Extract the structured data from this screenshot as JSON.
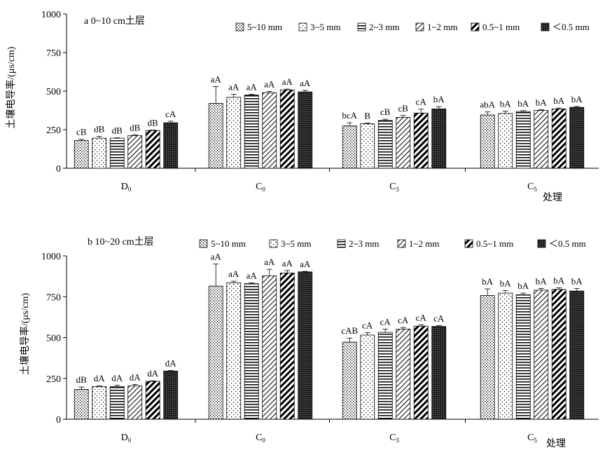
{
  "chart_data": [
    {
      "type": "bar",
      "title": "a 0~10 cm土层",
      "xlabel": "处理",
      "ylabel": "土壤电导率/(μs/cm)",
      "ylim": [
        0,
        1000
      ],
      "yticks": [
        "0",
        "250",
        "500",
        "750",
        "1000"
      ],
      "categories": [
        "D0",
        "C0",
        "C3",
        "C5"
      ],
      "category_labels": [
        {
          "base": "D",
          "sub": "0"
        },
        {
          "base": "C",
          "sub": "0"
        },
        {
          "base": "C",
          "sub": "3"
        },
        {
          "base": "C",
          "sub": "5"
        }
      ],
      "grid": false,
      "legend_position": "top",
      "series": [
        {
          "name": "5~10 mm",
          "values": [
            180,
            420,
            275,
            345
          ],
          "errors": [
            8,
            110,
            20,
            20
          ],
          "labels": [
            "cB",
            "aA",
            "bcA",
            "abA"
          ]
        },
        {
          "name": "3~5 mm",
          "values": [
            195,
            460,
            288,
            355
          ],
          "errors": [
            12,
            20,
            5,
            15
          ],
          "labels": [
            "dB",
            "aA",
            "B",
            "bA"
          ]
        },
        {
          "name": "2~3 mm",
          "values": [
            195,
            475,
            310,
            368
          ],
          "errors": [
            3,
            5,
            8,
            5
          ],
          "labels": [
            "dB",
            "aA",
            "cB",
            "bA"
          ]
        },
        {
          "name": "1~2 mm",
          "values": [
            212,
            490,
            330,
            375
          ],
          "errors": [
            5,
            8,
            12,
            5
          ],
          "labels": [
            "dB",
            "aA",
            "cB",
            "bA"
          ]
        },
        {
          "name": "0.5~1 mm",
          "values": [
            245,
            508,
            358,
            385
          ],
          "errors": [
            3,
            5,
            25,
            5
          ],
          "labels": [
            "dB",
            "aA",
            "cA",
            "bA"
          ]
        },
        {
          "name": "＜0.5 mm",
          "values": [
            295,
            495,
            385,
            395
          ],
          "errors": [
            10,
            10,
            15,
            5
          ],
          "labels": [
            "cA",
            "aA",
            "bA",
            "bA"
          ]
        }
      ]
    },
    {
      "type": "bar",
      "title": "b 10~20 cm土层",
      "xlabel": "处理",
      "ylabel": "土壤电导率/(μs/cm)",
      "ylim": [
        0,
        1000
      ],
      "yticks": [
        "0",
        "250",
        "500",
        "750",
        "1000"
      ],
      "categories": [
        "D0",
        "C0",
        "C3",
        "C5"
      ],
      "category_labels": [
        {
          "base": "D",
          "sub": "0"
        },
        {
          "base": "C",
          "sub": "0"
        },
        {
          "base": "C",
          "sub": "3"
        },
        {
          "base": "C",
          "sub": "5"
        }
      ],
      "grid": false,
      "legend_position": "top",
      "series": [
        {
          "name": "5~10 mm",
          "values": [
            182,
            815,
            472,
            758
          ],
          "errors": [
            15,
            135,
            25,
            40
          ],
          "labels": [
            "dB",
            "aA",
            "cAB",
            "bA"
          ]
        },
        {
          "name": "3~5 mm",
          "values": [
            200,
            835,
            515,
            772
          ],
          "errors": [
            5,
            10,
            15,
            15
          ],
          "labels": [
            "dA",
            "aA",
            "cA",
            "bA"
          ]
        },
        {
          "name": "2~3 mm",
          "values": [
            200,
            830,
            532,
            762
          ],
          "errors": [
            8,
            5,
            20,
            10
          ],
          "labels": [
            "dA",
            "aA",
            "cA",
            "bA"
          ]
        },
        {
          "name": "1~2 mm",
          "values": [
            205,
            878,
            552,
            790
          ],
          "errors": [
            8,
            40,
            10,
            10
          ],
          "labels": [
            "dA",
            "aA",
            "cA",
            "bA"
          ]
        },
        {
          "name": "0.5~1 mm",
          "values": [
            232,
            895,
            570,
            795
          ],
          "errors": [
            3,
            15,
            8,
            10
          ],
          "labels": [
            "dA",
            "aA",
            "cA",
            "bA"
          ]
        },
        {
          "name": "＜0.5 mm",
          "values": [
            295,
            902,
            568,
            785
          ],
          "errors": [
            3,
            3,
            5,
            15
          ],
          "labels": [
            "dA",
            "aA",
            "cA",
            "bA"
          ]
        }
      ]
    }
  ]
}
